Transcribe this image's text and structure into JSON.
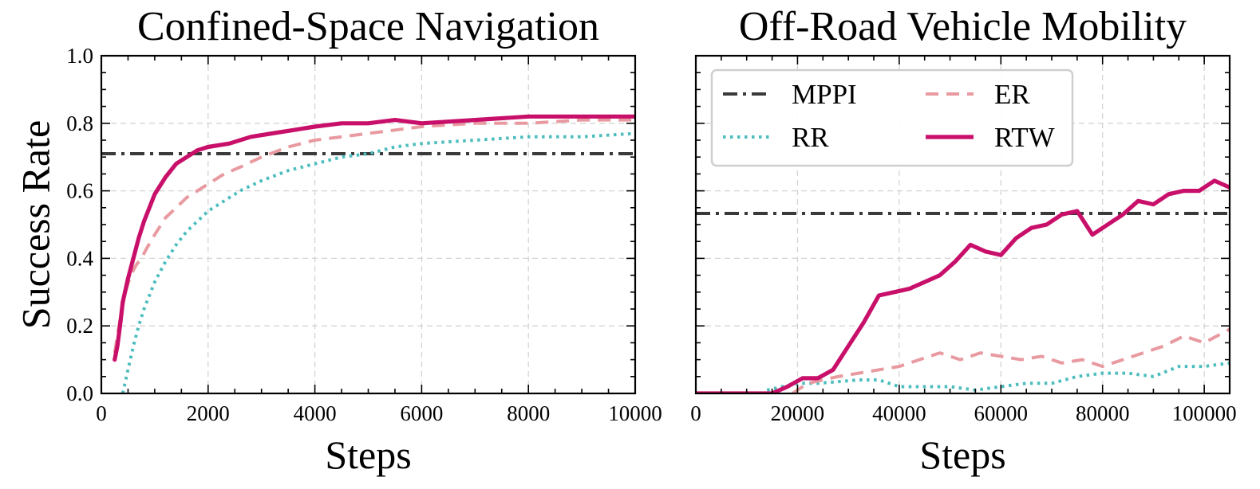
{
  "chart_data": [
    {
      "type": "line",
      "title": "Confined-Space Navigation",
      "xlabel": "Steps",
      "ylabel": "Success Rate",
      "xlim": [
        0,
        10000
      ],
      "ylim": [
        0.0,
        1.0
      ],
      "xticks": [
        0,
        2000,
        4000,
        6000,
        8000,
        10000
      ],
      "yticks": [
        0.0,
        0.2,
        0.4,
        0.6,
        0.8,
        1.0
      ],
      "xtick_labels": [
        "0",
        "2000",
        "4000",
        "6000",
        "8000",
        "10000"
      ],
      "ytick_labels": [
        "0.0",
        "0.2",
        "0.4",
        "0.6",
        "0.8",
        "1.0"
      ],
      "grid": true,
      "series": [
        {
          "name": "MPPI",
          "style": "dashdot",
          "color": "#3a3a3a",
          "x": [
            0,
            10000
          ],
          "y": [
            0.71,
            0.71
          ]
        },
        {
          "name": "RR",
          "style": "dotted",
          "color": "#4dbdbd",
          "x": [
            400,
            500,
            600,
            700,
            800,
            900,
            1000,
            1200,
            1400,
            1600,
            1800,
            2000,
            2300,
            2600,
            3000,
            3500,
            4000,
            4500,
            5000,
            5500,
            6000,
            7000,
            8000,
            9000,
            10000
          ],
          "y": [
            0.0,
            0.07,
            0.14,
            0.2,
            0.25,
            0.29,
            0.33,
            0.39,
            0.44,
            0.48,
            0.51,
            0.54,
            0.57,
            0.6,
            0.63,
            0.66,
            0.68,
            0.7,
            0.71,
            0.73,
            0.74,
            0.75,
            0.76,
            0.76,
            0.77
          ]
        },
        {
          "name": "ER",
          "style": "dashed",
          "color": "#e89aa0",
          "x": [
            250,
            350,
            450,
            550,
            650,
            750,
            850,
            1000,
            1200,
            1400,
            1600,
            1800,
            2000,
            2300,
            2600,
            3000,
            3500,
            4000,
            4500,
            5000,
            5500,
            6000,
            7000,
            8000,
            9000,
            10000
          ],
          "y": [
            0.12,
            0.22,
            0.3,
            0.35,
            0.38,
            0.4,
            0.43,
            0.47,
            0.52,
            0.55,
            0.58,
            0.6,
            0.62,
            0.65,
            0.67,
            0.7,
            0.73,
            0.75,
            0.76,
            0.77,
            0.78,
            0.79,
            0.8,
            0.8,
            0.81,
            0.81
          ]
        },
        {
          "name": "RTW",
          "style": "solid",
          "color": "#c8106a",
          "x": [
            250,
            300,
            350,
            400,
            500,
            600,
            700,
            800,
            900,
            1000,
            1200,
            1400,
            1600,
            1800,
            2000,
            2400,
            2800,
            3200,
            3600,
            4000,
            4500,
            5000,
            5500,
            6000,
            7000,
            8000,
            9000,
            10000
          ],
          "y": [
            0.1,
            0.14,
            0.2,
            0.27,
            0.34,
            0.4,
            0.46,
            0.51,
            0.55,
            0.59,
            0.64,
            0.68,
            0.7,
            0.72,
            0.73,
            0.74,
            0.76,
            0.77,
            0.78,
            0.79,
            0.8,
            0.8,
            0.81,
            0.8,
            0.81,
            0.82,
            0.82,
            0.82
          ]
        }
      ]
    },
    {
      "type": "line",
      "title": "Off-Road Vehicle Mobility",
      "xlabel": "Steps",
      "ylabel": "",
      "xlim": [
        0,
        105000
      ],
      "ylim": [
        0.0,
        1.0
      ],
      "xticks": [
        0,
        20000,
        40000,
        60000,
        80000,
        100000
      ],
      "yticks": [
        0.0,
        0.2,
        0.4,
        0.6,
        0.8,
        1.0
      ],
      "xtick_labels": [
        "0",
        "20000",
        "40000",
        "60000",
        "80000",
        "100000"
      ],
      "ytick_labels": [],
      "grid": true,
      "legend": {
        "location": "upper-left",
        "columns": 2,
        "entries": [
          "MPPI",
          "RR",
          "ER",
          "RTW"
        ]
      },
      "series": [
        {
          "name": "MPPI",
          "style": "dashdot",
          "color": "#3a3a3a",
          "x": [
            0,
            105000
          ],
          "y": [
            0.533,
            0.533
          ]
        },
        {
          "name": "RR",
          "style": "dotted",
          "color": "#4dbdbd",
          "x": [
            14000,
            17000,
            20000,
            24000,
            28000,
            32000,
            36000,
            40000,
            45000,
            50000,
            55000,
            60000,
            65000,
            70000,
            75000,
            80000,
            85000,
            90000,
            95000,
            100000,
            105000
          ],
          "y": [
            0.01,
            0.02,
            0.03,
            0.03,
            0.035,
            0.04,
            0.04,
            0.02,
            0.02,
            0.02,
            0.01,
            0.02,
            0.03,
            0.03,
            0.05,
            0.06,
            0.06,
            0.05,
            0.08,
            0.08,
            0.09
          ]
        },
        {
          "name": "ER",
          "style": "dashed",
          "color": "#e89aa0",
          "x": [
            19000,
            22000,
            25000,
            28000,
            32000,
            36000,
            40000,
            44000,
            48000,
            52000,
            56000,
            60000,
            64000,
            68000,
            72000,
            76000,
            80000,
            84000,
            88000,
            92000,
            96000,
            100000,
            105000
          ],
          "y": [
            0.0,
            0.03,
            0.04,
            0.05,
            0.06,
            0.07,
            0.08,
            0.1,
            0.12,
            0.1,
            0.12,
            0.11,
            0.1,
            0.11,
            0.09,
            0.1,
            0.08,
            0.1,
            0.12,
            0.14,
            0.17,
            0.15,
            0.19
          ]
        },
        {
          "name": "RTW",
          "style": "solid",
          "color": "#c8106a",
          "x": [
            0,
            15000,
            18000,
            21000,
            24000,
            27000,
            30000,
            33000,
            36000,
            39000,
            42000,
            45000,
            48000,
            51000,
            54000,
            57000,
            60000,
            63000,
            66000,
            69000,
            72000,
            75000,
            78000,
            81000,
            84000,
            87000,
            90000,
            93000,
            96000,
            99000,
            102000,
            105000
          ],
          "y": [
            0.0,
            0.0,
            0.02,
            0.045,
            0.045,
            0.07,
            0.14,
            0.21,
            0.29,
            0.3,
            0.31,
            0.33,
            0.35,
            0.39,
            0.44,
            0.42,
            0.41,
            0.46,
            0.49,
            0.5,
            0.53,
            0.54,
            0.47,
            0.5,
            0.53,
            0.57,
            0.56,
            0.59,
            0.6,
            0.6,
            0.63,
            0.61
          ]
        }
      ]
    }
  ]
}
